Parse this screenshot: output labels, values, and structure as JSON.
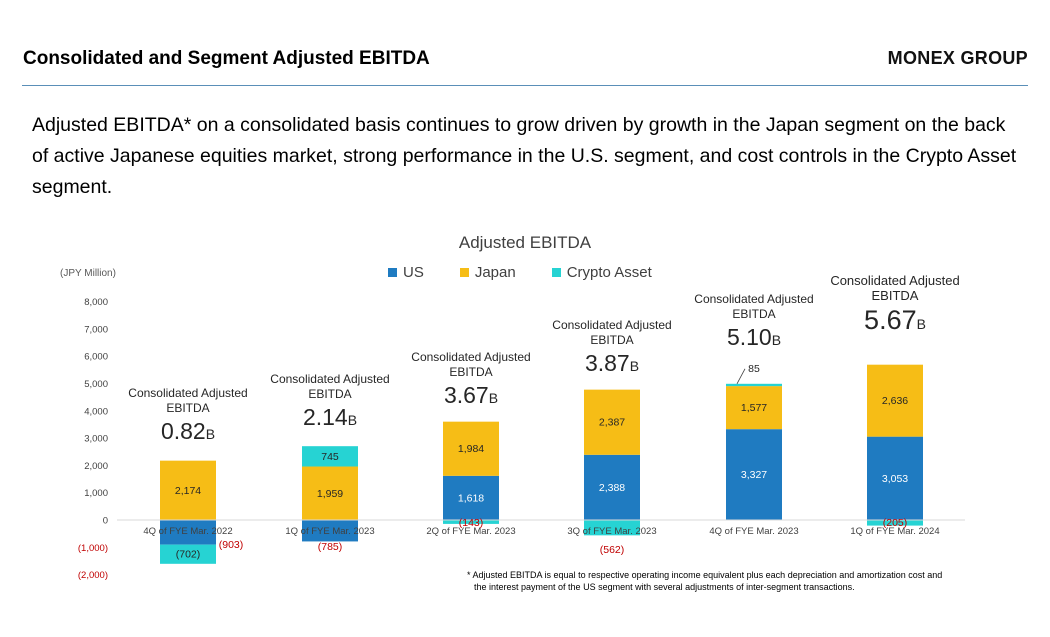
{
  "header": {
    "title": "Consolidated and Segment Adjusted EBITDA",
    "brand": "MONEX GROUP"
  },
  "lead_text": "Adjusted EBITDA* on a consolidated basis continues to grow driven by growth in the Japan segment on the back of active Japanese equities market, strong performance in the U.S. segment, and cost controls in the Crypto Asset segment.",
  "colors": {
    "us": "#1f7bc1",
    "japan": "#f6bd16",
    "crypto": "#26d3d3",
    "negative_label": "#c00000"
  },
  "chart_data": {
    "type": "bar",
    "stacked": true,
    "title": "Adjusted EBITDA",
    "unit_label": "(JPY Million)",
    "ylim": [
      -2000,
      8000
    ],
    "yticks": [
      -2000,
      -1000,
      0,
      1000,
      2000,
      3000,
      4000,
      5000,
      6000,
      7000,
      8000
    ],
    "ytick_labels": [
      "(2,000)",
      "(1,000)",
      "0",
      "1,000",
      "2,000",
      "3,000",
      "4,000",
      "5,000",
      "6,000",
      "7,000",
      "8,000"
    ],
    "legend_position": "top-center",
    "categories": [
      "4Q of FYE Mar. 2022",
      "1Q of FYE Mar. 2023",
      "2Q of FYE Mar. 2023",
      "3Q of FYE Mar. 2023",
      "4Q of FYE Mar. 2023",
      "1Q of FYE Mar. 2024"
    ],
    "series": [
      {
        "name": "US",
        "values": [
          -903,
          -785,
          1618,
          2388,
          3327,
          3053
        ],
        "labels": [
          "(903)",
          "(785)",
          "1,618",
          "2,388",
          "3,327",
          "3,053"
        ]
      },
      {
        "name": "Japan",
        "values": [
          2174,
          1959,
          1984,
          2387,
          1577,
          2636
        ],
        "labels": [
          "2,174",
          "1,959",
          "1,984",
          "2,387",
          "1,577",
          "2,636"
        ]
      },
      {
        "name": "Crypto Asset",
        "values": [
          -702,
          745,
          -143,
          -562,
          85,
          -205
        ],
        "labels": [
          "(702)",
          "745",
          "(143)",
          "(562)",
          "85",
          "(205)"
        ]
      }
    ],
    "totals": [
      {
        "caption": "Consolidated Adjusted EBITDA",
        "value": "0.82",
        "suffix": "B"
      },
      {
        "caption": "Consolidated Adjusted EBITDA",
        "value": "2.14",
        "suffix": "B"
      },
      {
        "caption": "Consolidated Adjusted EBITDA",
        "value": "3.67",
        "suffix": "B"
      },
      {
        "caption": "Consolidated Adjusted EBITDA",
        "value": "3.87",
        "suffix": "B"
      },
      {
        "caption": "Consolidated Adjusted EBITDA",
        "value": "5.10",
        "suffix": "B"
      },
      {
        "caption": "Consolidated Adjusted EBITDA",
        "value": "5.67",
        "suffix": "B"
      }
    ]
  },
  "footnote": {
    "line1": "* Adjusted EBITDA is equal to respective operating income equivalent plus each depreciation and amortization cost and",
    "line2": "the interest payment of the US segment with several adjustments of inter-segment transactions."
  }
}
